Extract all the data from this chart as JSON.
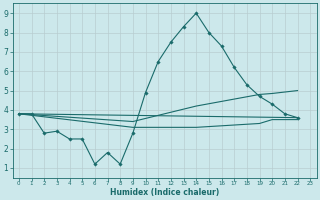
{
  "xlabel": "Humidex (Indice chaleur)",
  "xlim": [
    -0.5,
    23.5
  ],
  "ylim": [
    0.5,
    9.5
  ],
  "yticks": [
    1,
    2,
    3,
    4,
    5,
    6,
    7,
    8,
    9
  ],
  "xticks": [
    0,
    1,
    2,
    3,
    4,
    5,
    6,
    7,
    8,
    9,
    10,
    11,
    12,
    13,
    14,
    15,
    16,
    17,
    18,
    19,
    20,
    21,
    22,
    23
  ],
  "bg_color": "#cce8eb",
  "grid_color": "#b8cdd0",
  "line_color": "#1a6b6b",
  "lines": [
    {
      "x": [
        0,
        1,
        2,
        3,
        4,
        5,
        6,
        7,
        8,
        9,
        10,
        11,
        12,
        13,
        14,
        15,
        16,
        17,
        18,
        19,
        20,
        21,
        22
      ],
      "y": [
        3.8,
        3.8,
        2.8,
        2.9,
        2.5,
        2.5,
        1.2,
        1.8,
        1.2,
        2.8,
        4.9,
        6.5,
        7.5,
        8.3,
        9.0,
        8.0,
        7.3,
        6.2,
        5.3,
        4.7,
        4.3,
        3.8,
        3.6
      ],
      "marker": true,
      "markersize": 1.8,
      "lw": 0.8
    },
    {
      "x": [
        0,
        22
      ],
      "y": [
        3.8,
        3.6
      ],
      "marker": false,
      "lw": 0.8
    },
    {
      "x": [
        0,
        9,
        14,
        19,
        20,
        22
      ],
      "y": [
        3.8,
        3.4,
        4.2,
        4.8,
        4.85,
        5.0
      ],
      "marker": false,
      "lw": 0.8
    },
    {
      "x": [
        0,
        9,
        14,
        19,
        20,
        22
      ],
      "y": [
        3.8,
        3.1,
        3.1,
        3.3,
        3.5,
        3.5
      ],
      "marker": false,
      "lw": 0.8
    }
  ]
}
